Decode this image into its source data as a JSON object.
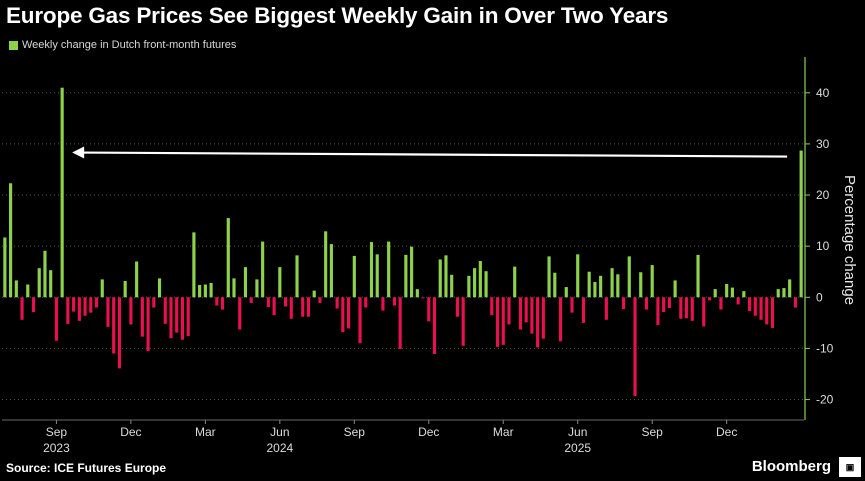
{
  "title": "Europe Gas Prices See Biggest Weekly Gain in Over Two Years",
  "legend_label": "Weekly change in Dutch front-month futures",
  "source": "Source: ICE Futures Europe",
  "brand": "Bloomberg",
  "colors": {
    "positive": "#8ed24c",
    "negative": "#e8104e",
    "background": "#000000",
    "axis": "#8ed24c"
  },
  "chart_data": {
    "type": "bar",
    "title": "Europe Gas Prices See Biggest Weekly Gain in Over Two Years",
    "ylabel": "Percentage change",
    "ylim": [
      -24,
      47
    ],
    "yticks": [
      -20,
      -10,
      0,
      10,
      20,
      30,
      40
    ],
    "grid": true,
    "legend_position": "top-left",
    "x_tick_labels": [
      {
        "label": "Sep",
        "year": "2023"
      },
      {
        "label": "Dec",
        "year": ""
      },
      {
        "label": "Mar",
        "year": ""
      },
      {
        "label": "Jun",
        "year": "2024"
      },
      {
        "label": "Sep",
        "year": ""
      },
      {
        "label": "Dec",
        "year": ""
      },
      {
        "label": "Mar",
        "year": ""
      },
      {
        "label": "Jun",
        "year": "2025"
      },
      {
        "label": "Sep",
        "year": ""
      },
      {
        "label": "Dec",
        "year": ""
      }
    ],
    "annotation": "arrow from latest weekly gain back to the prior larger gain in August 2023",
    "series": [
      {
        "name": "Weekly change in Dutch front-month futures",
        "values": [
          11.7,
          22.3,
          3.3,
          -4.4,
          2.5,
          -2.9,
          5.7,
          9.1,
          5.3,
          -8.5,
          41.0,
          -5.2,
          -2.8,
          -4.6,
          -3.6,
          -3.0,
          -2.0,
          3.5,
          -5.8,
          -11.0,
          -13.9,
          3.2,
          -5.3,
          7.0,
          -7.7,
          -10.5,
          -2.0,
          3.7,
          -5.2,
          -8.0,
          -6.9,
          -8.3,
          -7.6,
          12.7,
          2.4,
          2.5,
          2.8,
          -1.6,
          -2.4,
          15.5,
          3.7,
          -6.3,
          5.9,
          -1.1,
          3.5,
          10.9,
          -1.9,
          -3.5,
          5.9,
          -1.8,
          -4.2,
          8.2,
          -3.8,
          -3.8,
          1.3,
          -1.1,
          12.9,
          10.4,
          -2.2,
          -6.8,
          -6.1,
          8.1,
          -9.0,
          -2.0,
          10.8,
          8.4,
          -2.6,
          10.9,
          -1.6,
          -10.1,
          8.3,
          9.9,
          1.6,
          -0.2,
          -4.7,
          -11.1,
          7.4,
          8.2,
          4.4,
          -3.8,
          -9.5,
          4.2,
          5.7,
          7.1,
          5.1,
          -3.5,
          -9.7,
          -9.3,
          -5.3,
          6.0,
          -6.3,
          -4.9,
          -7.1,
          -9.8,
          -8.1,
          8.0,
          4.8,
          -8.6,
          2.0,
          -3.0,
          8.4,
          -5.0,
          5.0,
          3.0,
          4.2,
          -4.4,
          5.7,
          4.5,
          -2.3,
          8.0,
          -19.3,
          4.9,
          -2.4,
          6.3,
          -5.4,
          -2.9,
          -2.1,
          3.3,
          -4.2,
          -4.1,
          -4.6,
          8.3,
          -5.7,
          -0.6,
          1.6,
          -2.4,
          2.6,
          1.9,
          -1.4,
          1.2,
          -2.7,
          -3.6,
          -4.4,
          -5.3,
          -6.0,
          1.6,
          1.8,
          3.5,
          -2.0,
          28.7
        ]
      }
    ]
  }
}
